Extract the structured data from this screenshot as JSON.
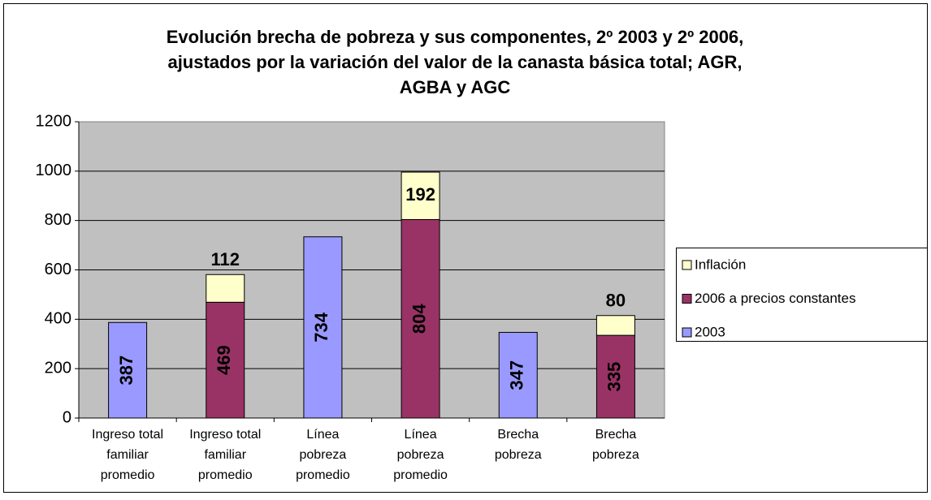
{
  "chart_data": {
    "type": "bar",
    "stacked": true,
    "title": [
      "Evolución brecha de pobreza y sus componentes, 2º 2003 y 2º 2006,",
      "ajustados por la variación del valor de la canasta básica total; AGR,",
      "AGBA y AGC"
    ],
    "categories": [
      [
        "Ingreso total",
        "familiar",
        "promedio"
      ],
      [
        "Ingreso total",
        "familiar",
        "promedio"
      ],
      [
        "Línea",
        "pobreza",
        "promedio"
      ],
      [
        "Línea",
        "pobreza",
        "promedio"
      ],
      [
        "Brecha",
        "pobreza"
      ],
      [
        "Brecha",
        "pobreza"
      ]
    ],
    "series": [
      {
        "name": "2003",
        "color": "#9999ff",
        "values": [
          387,
          null,
          734,
          null,
          347,
          null
        ]
      },
      {
        "name": "2006 a precios constantes",
        "color": "#993366",
        "values": [
          null,
          469,
          null,
          804,
          null,
          335
        ]
      },
      {
        "name": "Inflación",
        "color": "#ffffcc",
        "values": [
          null,
          112,
          null,
          192,
          null,
          80
        ]
      }
    ],
    "ylim": [
      0,
      1200
    ],
    "yticks": [
      0,
      200,
      400,
      600,
      800,
      1000,
      1200
    ],
    "grid": true,
    "legend": "right"
  }
}
